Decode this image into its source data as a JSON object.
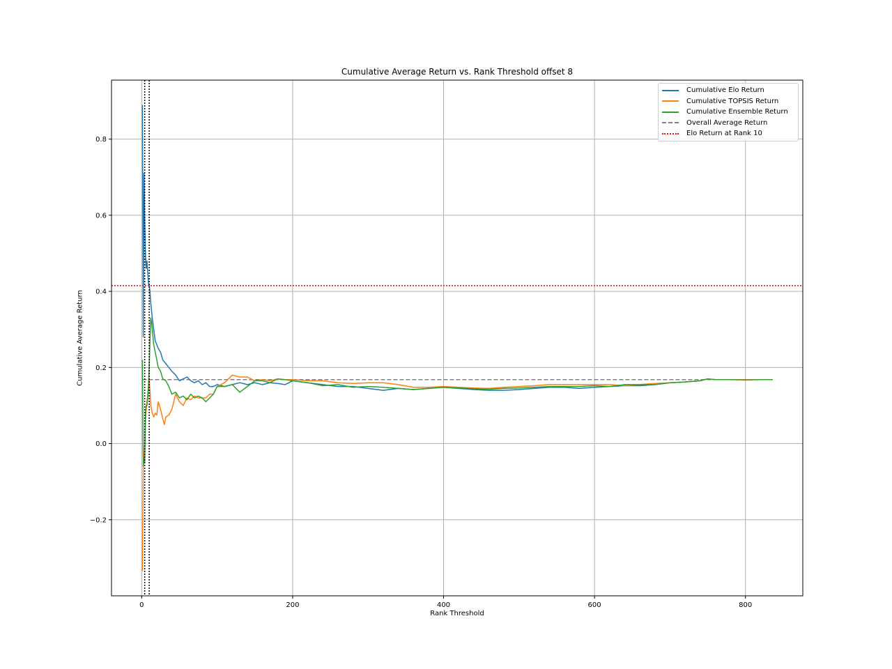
{
  "chart_data": {
    "type": "line",
    "title": "Cumulative Average Return vs. Rank Threshold offset 8",
    "xlabel": "Rank Threshold",
    "ylabel": "Cumulative Average Return",
    "xlim": [
      -40,
      876
    ],
    "ylim": [
      -0.4,
      0.955
    ],
    "xticks": [
      0,
      200,
      400,
      600,
      800
    ],
    "yticks": [
      -0.2,
      0.0,
      0.2,
      0.4,
      0.6,
      0.8
    ],
    "xtick_labels": [
      "0",
      "200",
      "400",
      "600",
      "800"
    ],
    "ytick_labels": [
      "−0.2",
      "0.0",
      "0.2",
      "0.4",
      "0.6",
      "0.8"
    ],
    "grid": true,
    "legend_position": "upper right",
    "series": [
      {
        "name": "Cumulative Elo Return",
        "color": "#1f77b4",
        "style": "solid",
        "x": [
          1,
          2,
          3,
          4,
          5,
          6,
          7,
          8,
          9,
          10,
          11,
          12,
          14,
          16,
          18,
          20,
          22,
          25,
          28,
          32,
          36,
          40,
          45,
          50,
          55,
          60,
          65,
          70,
          75,
          80,
          85,
          90,
          95,
          100,
          110,
          120,
          130,
          140,
          150,
          160,
          170,
          180,
          190,
          200,
          220,
          240,
          260,
          280,
          300,
          320,
          340,
          360,
          380,
          400,
          420,
          440,
          460,
          480,
          500,
          520,
          540,
          560,
          580,
          600,
          620,
          640,
          660,
          680,
          700,
          720,
          740,
          750,
          760,
          780,
          800,
          820,
          836
        ],
        "y": [
          0.89,
          0.28,
          0.71,
          0.59,
          0.5,
          0.46,
          0.48,
          0.45,
          0.42,
          0.415,
          0.4,
          0.37,
          0.33,
          0.3,
          0.27,
          0.26,
          0.25,
          0.24,
          0.22,
          0.21,
          0.2,
          0.19,
          0.18,
          0.165,
          0.17,
          0.175,
          0.165,
          0.16,
          0.165,
          0.155,
          0.16,
          0.15,
          0.15,
          0.155,
          0.15,
          0.155,
          0.16,
          0.155,
          0.16,
          0.155,
          0.16,
          0.158,
          0.155,
          0.165,
          0.16,
          0.155,
          0.15,
          0.15,
          0.145,
          0.14,
          0.145,
          0.142,
          0.145,
          0.148,
          0.145,
          0.142,
          0.14,
          0.14,
          0.142,
          0.145,
          0.148,
          0.148,
          0.145,
          0.148,
          0.15,
          0.152,
          0.152,
          0.155,
          0.16,
          0.162,
          0.165,
          0.17,
          0.168,
          0.168,
          0.168,
          0.168,
          0.168
        ]
      },
      {
        "name": "Cumulative TOPSIS Return",
        "color": "#ff7f0e",
        "style": "solid",
        "x": [
          1,
          2,
          3,
          4,
          5,
          6,
          7,
          8,
          9,
          10,
          11,
          12,
          14,
          16,
          18,
          20,
          22,
          25,
          28,
          30,
          32,
          36,
          40,
          45,
          50,
          55,
          60,
          65,
          70,
          75,
          80,
          85,
          90,
          95,
          100,
          110,
          120,
          130,
          140,
          150,
          160,
          170,
          180,
          190,
          200,
          220,
          240,
          260,
          280,
          300,
          320,
          340,
          360,
          380,
          400,
          420,
          440,
          460,
          480,
          500,
          520,
          540,
          560,
          580,
          600,
          620,
          640,
          660,
          680,
          700,
          720,
          740,
          750,
          760,
          780,
          800,
          820,
          836
        ],
        "y": [
          -0.335,
          -0.06,
          -0.04,
          0.0,
          0.06,
          0.09,
          0.11,
          0.13,
          0.15,
          0.17,
          0.14,
          0.1,
          0.08,
          0.07,
          0.08,
          0.075,
          0.11,
          0.09,
          0.065,
          0.05,
          0.07,
          0.075,
          0.09,
          0.13,
          0.11,
          0.1,
          0.12,
          0.115,
          0.125,
          0.12,
          0.12,
          0.12,
          0.13,
          0.13,
          0.15,
          0.16,
          0.18,
          0.175,
          0.175,
          0.165,
          0.168,
          0.165,
          0.17,
          0.168,
          0.168,
          0.165,
          0.165,
          0.16,
          0.158,
          0.16,
          0.16,
          0.155,
          0.148,
          0.148,
          0.15,
          0.148,
          0.146,
          0.145,
          0.148,
          0.15,
          0.152,
          0.155,
          0.155,
          0.155,
          0.155,
          0.155,
          0.152,
          0.155,
          0.158,
          0.16,
          0.162,
          0.165,
          0.17,
          0.168,
          0.168,
          0.168,
          0.168,
          0.168
        ]
      },
      {
        "name": "Cumulative Ensemble Return",
        "color": "#2ca02c",
        "style": "solid",
        "x": [
          1,
          2,
          3,
          4,
          5,
          6,
          7,
          8,
          9,
          10,
          11,
          12,
          13,
          14,
          16,
          18,
          20,
          22,
          25,
          28,
          32,
          36,
          40,
          45,
          50,
          55,
          60,
          65,
          70,
          75,
          80,
          85,
          90,
          95,
          100,
          110,
          120,
          130,
          140,
          150,
          160,
          170,
          180,
          190,
          200,
          220,
          240,
          260,
          280,
          300,
          320,
          340,
          360,
          380,
          400,
          420,
          440,
          460,
          480,
          500,
          520,
          540,
          560,
          580,
          600,
          620,
          640,
          660,
          680,
          700,
          720,
          740,
          750,
          760,
          780,
          800,
          820,
          836
        ],
        "y": [
          0.22,
          -0.06,
          -0.04,
          -0.05,
          0.08,
          0.1,
          0.1,
          0.12,
          0.15,
          0.2,
          0.27,
          0.33,
          0.32,
          0.3,
          0.26,
          0.24,
          0.22,
          0.2,
          0.19,
          0.17,
          0.165,
          0.15,
          0.13,
          0.135,
          0.12,
          0.125,
          0.115,
          0.13,
          0.12,
          0.125,
          0.12,
          0.11,
          0.12,
          0.13,
          0.15,
          0.15,
          0.155,
          0.135,
          0.15,
          0.165,
          0.165,
          0.16,
          0.17,
          0.168,
          0.165,
          0.16,
          0.152,
          0.155,
          0.148,
          0.15,
          0.148,
          0.145,
          0.142,
          0.145,
          0.148,
          0.146,
          0.144,
          0.143,
          0.145,
          0.146,
          0.148,
          0.15,
          0.15,
          0.15,
          0.152,
          0.15,
          0.155,
          0.155,
          0.155,
          0.16,
          0.162,
          0.165,
          0.17,
          0.168,
          0.168,
          0.167,
          0.168,
          0.168
        ]
      },
      {
        "name": "Overall Average Return",
        "color": "#808080",
        "style": "dashed",
        "x": [
          1,
          836
        ],
        "y": [
          0.168,
          0.168
        ]
      },
      {
        "name": "Elo Return at Rank 10",
        "color": "#ff0000",
        "style": "dotted",
        "orientation": "horizontal",
        "y_value": 0.415
      }
    ],
    "vertical_markers": [
      {
        "x": 4,
        "color": "#000000",
        "style": "dotted"
      },
      {
        "x": 10,
        "color": "#000000",
        "style": "dotted"
      }
    ]
  }
}
